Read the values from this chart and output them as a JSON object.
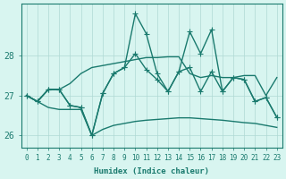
{
  "xlabel": "Humidex (Indice chaleur)",
  "background_color": "#d8f5f0",
  "grid_color": "#afd9d4",
  "line_color": "#1a7a6e",
  "xlim": [
    -0.5,
    23.5
  ],
  "ylim": [
    25.7,
    29.3
  ],
  "xticks": [
    0,
    1,
    2,
    3,
    4,
    5,
    6,
    7,
    8,
    9,
    10,
    11,
    12,
    13,
    14,
    15,
    16,
    17,
    18,
    19,
    20,
    21,
    22,
    23
  ],
  "yticks": [
    26,
    27,
    28
  ],
  "series": [
    [
      27.0,
      26.85,
      27.15,
      27.15,
      26.75,
      26.7,
      26.0,
      27.05,
      27.55,
      27.7,
      29.05,
      28.55,
      27.55,
      27.1,
      27.6,
      28.6,
      28.05,
      28.65,
      27.1,
      27.45,
      27.4,
      26.85,
      26.95,
      26.45
    ],
    [
      27.0,
      26.85,
      27.15,
      27.15,
      26.75,
      26.7,
      26.0,
      27.05,
      27.55,
      27.7,
      28.05,
      27.65,
      27.4,
      27.1,
      27.6,
      27.7,
      27.1,
      27.6,
      27.1,
      27.45,
      27.4,
      26.85,
      26.95,
      26.45
    ],
    [
      27.0,
      26.85,
      27.15,
      27.15,
      27.3,
      27.55,
      27.7,
      27.75,
      27.8,
      27.85,
      27.9,
      27.95,
      27.95,
      27.97,
      27.97,
      27.55,
      27.45,
      27.5,
      27.45,
      27.45,
      27.5,
      27.5,
      27.0,
      27.45
    ],
    [
      27.0,
      26.85,
      26.7,
      26.65,
      26.65,
      26.65,
      26.0,
      26.15,
      26.25,
      26.3,
      26.35,
      26.38,
      26.4,
      26.42,
      26.44,
      26.44,
      26.42,
      26.4,
      26.38,
      26.35,
      26.32,
      26.3,
      26.25,
      26.2
    ]
  ],
  "markers": [
    "+",
    "+",
    null,
    null
  ],
  "markersize": 4,
  "linewidth": 1.0,
  "tick_fontsize": 5.5,
  "xlabel_fontsize": 6.5
}
